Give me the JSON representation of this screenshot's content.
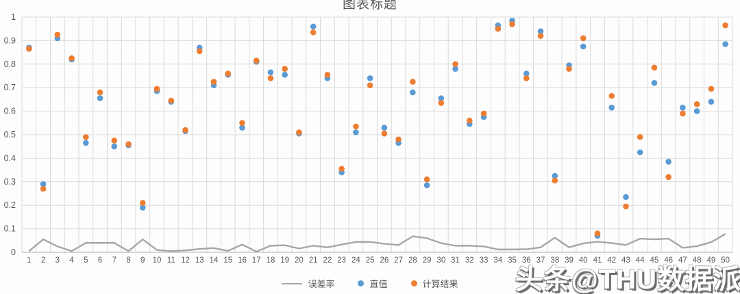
{
  "title": "图表标题",
  "watermark": "头条@THU数据派",
  "colors": {
    "blue": "#5B9BD5",
    "orange": "#ED7D31",
    "error_line": "#A6A6A6",
    "grid": "#D9D9D9",
    "axis_line": "#BFBFBF",
    "axis_text": "#595959",
    "title_text": "#595959"
  },
  "chart_data": {
    "type": "scatter",
    "title": "图表标题",
    "x": [
      1,
      2,
      3,
      4,
      5,
      6,
      7,
      8,
      9,
      10,
      11,
      12,
      13,
      14,
      15,
      16,
      17,
      18,
      19,
      20,
      21,
      22,
      23,
      24,
      25,
      26,
      27,
      28,
      29,
      30,
      31,
      32,
      33,
      34,
      35,
      36,
      37,
      38,
      39,
      40,
      41,
      42,
      43,
      44,
      45,
      46,
      47,
      48,
      49,
      50
    ],
    "series": [
      {
        "name": "误差率",
        "type": "line",
        "color_key": "error_line",
        "values": [
          0.005,
          0.055,
          0.025,
          0.005,
          0.04,
          0.04,
          0.04,
          0.005,
          0.055,
          0.01,
          0.005,
          0.008,
          0.014,
          0.018,
          0.006,
          0.033,
          0.003,
          0.028,
          0.03,
          0.016,
          0.028,
          0.021,
          0.033,
          0.044,
          0.044,
          0.036,
          0.031,
          0.068,
          0.06,
          0.039,
          0.028,
          0.028,
          0.025,
          0.012,
          0.012,
          0.013,
          0.021,
          0.062,
          0.021,
          0.038,
          0.045,
          0.039,
          0.031,
          0.058,
          0.055,
          0.058,
          0.019,
          0.026,
          0.043,
          0.078
        ]
      },
      {
        "name": "直值",
        "type": "scatter",
        "color_key": "blue",
        "values": [
          0.87,
          0.29,
          0.91,
          0.82,
          0.465,
          0.655,
          0.45,
          0.455,
          0.19,
          0.685,
          0.64,
          0.515,
          0.87,
          0.71,
          0.755,
          0.53,
          0.81,
          0.765,
          0.755,
          0.505,
          0.96,
          0.74,
          0.34,
          0.51,
          0.74,
          0.53,
          0.465,
          0.68,
          0.285,
          0.655,
          0.78,
          0.545,
          0.575,
          0.965,
          0.985,
          0.76,
          0.94,
          0.325,
          0.795,
          0.875,
          0.07,
          0.615,
          0.235,
          0.425,
          0.72,
          0.385,
          0.615,
          0.6,
          0.64,
          0.885
        ]
      },
      {
        "name": "计算结果",
        "type": "scatter",
        "color_key": "orange",
        "values": [
          0.865,
          0.27,
          0.925,
          0.825,
          0.49,
          0.68,
          0.475,
          0.46,
          0.21,
          0.695,
          0.645,
          0.52,
          0.855,
          0.725,
          0.76,
          0.55,
          0.815,
          0.74,
          0.78,
          0.51,
          0.935,
          0.755,
          0.355,
          0.535,
          0.71,
          0.505,
          0.48,
          0.725,
          0.31,
          0.635,
          0.8,
          0.56,
          0.59,
          0.95,
          0.97,
          0.74,
          0.92,
          0.305,
          0.78,
          0.91,
          0.08,
          0.665,
          0.195,
          0.49,
          0.785,
          0.32,
          0.59,
          0.63,
          0.695,
          0.965
        ]
      }
    ],
    "ylim": [
      0,
      1
    ],
    "yticks": [
      0,
      0.1,
      0.2,
      0.3,
      0.4,
      0.5,
      0.6,
      0.7,
      0.8,
      0.9,
      1
    ],
    "grid": true,
    "legend_position": "bottom"
  }
}
